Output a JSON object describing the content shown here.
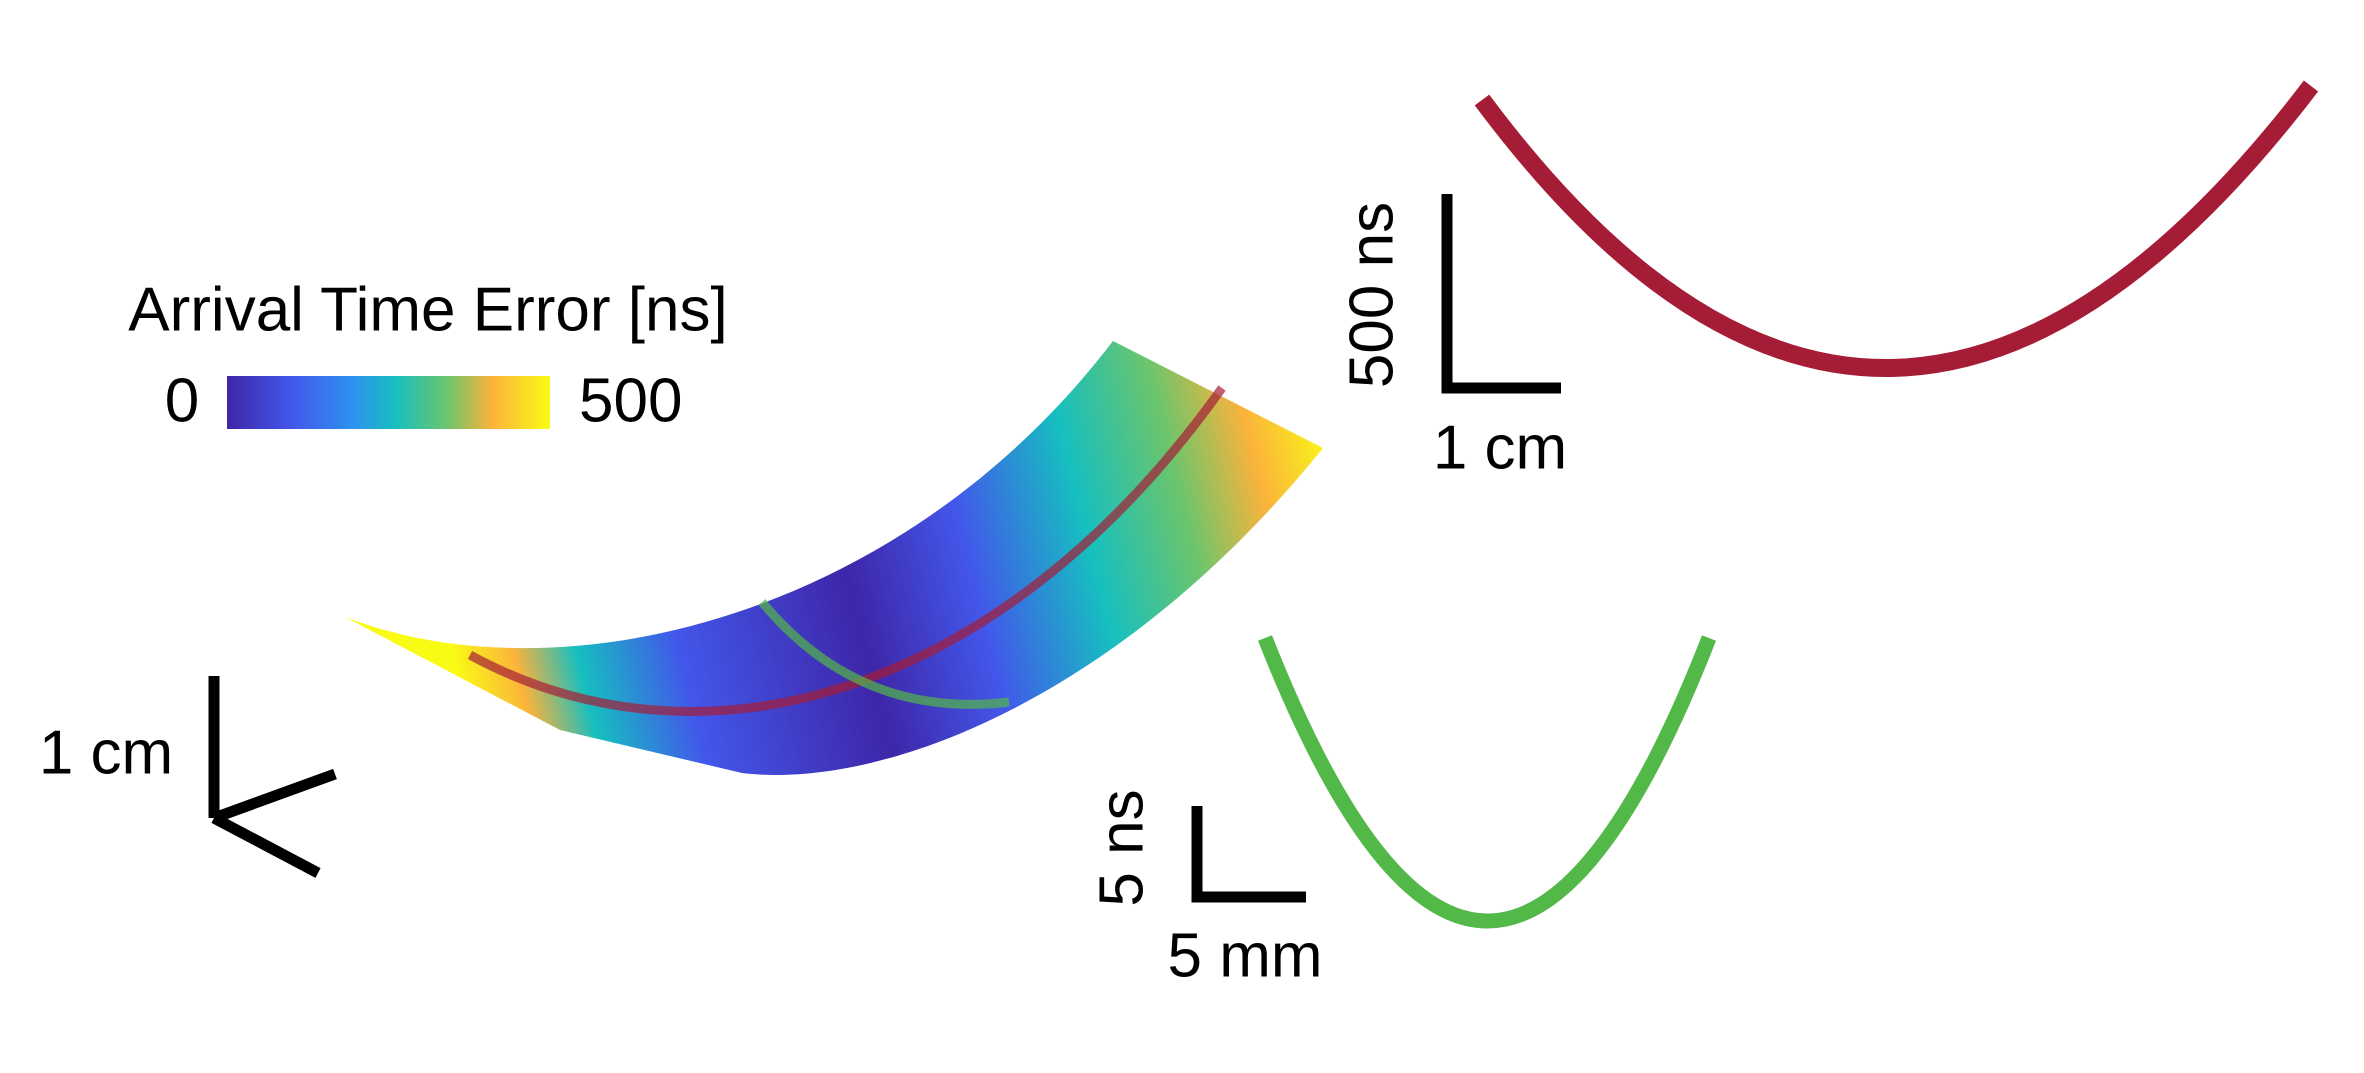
{
  "colorbar": {
    "title": "Arrival Time Error [ns]",
    "min": 0,
    "max": 500
  },
  "scale_bars": {
    "red": {
      "vertical": "500 ns",
      "horizontal": "1 cm"
    },
    "green": {
      "vertical": "5 ns",
      "horizontal": "5 mm"
    },
    "axes": {
      "label": "1 cm"
    }
  }
}
